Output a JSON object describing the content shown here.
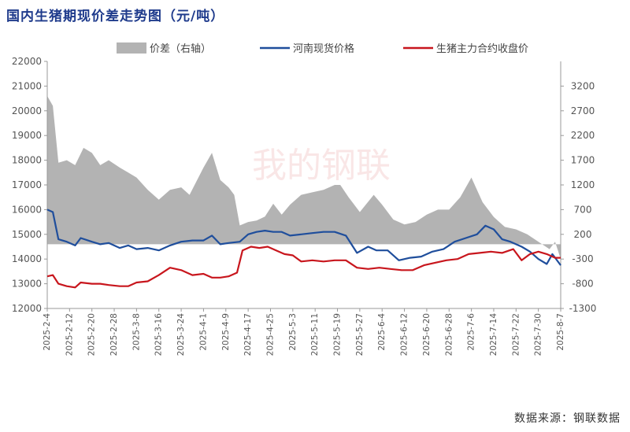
{
  "chart_data": {
    "type": "line",
    "title": "国内生猪期现价差走势图（元/吨）",
    "source": "数据来源：钢联数据",
    "watermark": "我的钢联",
    "legend_position": "top",
    "grid": false,
    "x_ticks": [
      "2025-2-4",
      "2025-2-12",
      "2025-2-20",
      "2025-2-28",
      "2025-3-8",
      "2025-3-16",
      "2025-3-24",
      "2025-4-1",
      "2025-4-9",
      "2025-4-17",
      "2025-4-25",
      "2025-5-3",
      "2025-5-11",
      "2025-5-19",
      "2025-5-27",
      "2025-6-4",
      "2025-6-12",
      "2025-6-20",
      "2025-6-28",
      "2025-7-6",
      "2025-7-14",
      "2025-7-22",
      "2025-7-30",
      "2025-8-7"
    ],
    "y_left": {
      "min": 12000,
      "max": 22000,
      "step": 1000,
      "ticks": [
        "12000",
        "13000",
        "14000",
        "15000",
        "16000",
        "17000",
        "18000",
        "19000",
        "20000",
        "21000",
        "22000"
      ]
    },
    "y_right": {
      "min": -1300,
      "max": 3700,
      "step": 500,
      "ticks": [
        "-1300",
        "-800",
        "-300",
        "200",
        "700",
        "1200",
        "1700",
        "2200",
        "2700",
        "3200"
      ]
    },
    "series": [
      {
        "name": "价差（右轴）",
        "axis": "right",
        "kind": "area",
        "color": "#b3b3b3",
        "points": [
          [
            "2025-2-4",
            3000
          ],
          [
            "2025-2-6",
            2800
          ],
          [
            "2025-2-8",
            1650
          ],
          [
            "2025-2-11",
            1700
          ],
          [
            "2025-2-14",
            1600
          ],
          [
            "2025-2-17",
            1950
          ],
          [
            "2025-2-20",
            1850
          ],
          [
            "2025-2-23",
            1600
          ],
          [
            "2025-2-26",
            1700
          ],
          [
            "2025-3-2",
            1550
          ],
          [
            "2025-3-5",
            1450
          ],
          [
            "2025-3-8",
            1350
          ],
          [
            "2025-3-12",
            1100
          ],
          [
            "2025-3-16",
            900
          ],
          [
            "2025-3-20",
            1100
          ],
          [
            "2025-3-24",
            1150
          ],
          [
            "2025-3-27",
            1000
          ],
          [
            "2025-4-1",
            1550
          ],
          [
            "2025-4-4",
            1850
          ],
          [
            "2025-4-7",
            1300
          ],
          [
            "2025-4-10",
            1150
          ],
          [
            "2025-4-12",
            1000
          ],
          [
            "2025-4-14",
            380
          ],
          [
            "2025-4-17",
            450
          ],
          [
            "2025-4-20",
            480
          ],
          [
            "2025-4-23",
            560
          ],
          [
            "2025-4-26",
            820
          ],
          [
            "2025-4-29",
            600
          ],
          [
            "2025-5-2",
            800
          ],
          [
            "2025-5-6",
            1000
          ],
          [
            "2025-5-10",
            1050
          ],
          [
            "2025-5-14",
            1100
          ],
          [
            "2025-5-18",
            1200
          ],
          [
            "2025-5-20",
            1200
          ],
          [
            "2025-5-23",
            950
          ],
          [
            "2025-5-27",
            650
          ],
          [
            "2025-6-1",
            1000
          ],
          [
            "2025-6-4",
            800
          ],
          [
            "2025-6-8",
            500
          ],
          [
            "2025-6-12",
            400
          ],
          [
            "2025-6-16",
            450
          ],
          [
            "2025-6-20",
            600
          ],
          [
            "2025-6-24",
            700
          ],
          [
            "2025-6-28",
            700
          ],
          [
            "2025-7-2",
            950
          ],
          [
            "2025-7-6",
            1350
          ],
          [
            "2025-7-10",
            850
          ],
          [
            "2025-7-14",
            550
          ],
          [
            "2025-7-18",
            350
          ],
          [
            "2025-7-22",
            300
          ],
          [
            "2025-7-26",
            200
          ],
          [
            "2025-7-30",
            50
          ],
          [
            "2025-8-3",
            -100
          ],
          [
            "2025-8-5",
            50
          ],
          [
            "2025-8-7",
            -300
          ]
        ]
      },
      {
        "name": "河南现货价格",
        "axis": "left",
        "kind": "line",
        "color": "#1f4e9c",
        "points": [
          [
            "2025-2-4",
            16000
          ],
          [
            "2025-2-6",
            15900
          ],
          [
            "2025-2-8",
            14800
          ],
          [
            "2025-2-11",
            14700
          ],
          [
            "2025-2-14",
            14550
          ],
          [
            "2025-2-16",
            14850
          ],
          [
            "2025-2-20",
            14700
          ],
          [
            "2025-2-23",
            14600
          ],
          [
            "2025-2-26",
            14650
          ],
          [
            "2025-3-2",
            14450
          ],
          [
            "2025-3-5",
            14550
          ],
          [
            "2025-3-8",
            14400
          ],
          [
            "2025-3-12",
            14450
          ],
          [
            "2025-3-16",
            14350
          ],
          [
            "2025-3-20",
            14550
          ],
          [
            "2025-3-24",
            14700
          ],
          [
            "2025-3-28",
            14750
          ],
          [
            "2025-4-1",
            14750
          ],
          [
            "2025-4-4",
            14950
          ],
          [
            "2025-4-7",
            14600
          ],
          [
            "2025-4-10",
            14650
          ],
          [
            "2025-4-14",
            14700
          ],
          [
            "2025-4-17",
            15000
          ],
          [
            "2025-4-20",
            15100
          ],
          [
            "2025-4-23",
            15150
          ],
          [
            "2025-4-26",
            15100
          ],
          [
            "2025-4-29",
            15100
          ],
          [
            "2025-5-2",
            14950
          ],
          [
            "2025-5-6",
            15000
          ],
          [
            "2025-5-10",
            15050
          ],
          [
            "2025-5-14",
            15100
          ],
          [
            "2025-5-18",
            15100
          ],
          [
            "2025-5-22",
            14950
          ],
          [
            "2025-5-26",
            14250
          ],
          [
            "2025-5-30",
            14500
          ],
          [
            "2025-6-2",
            14350
          ],
          [
            "2025-6-6",
            14350
          ],
          [
            "2025-6-10",
            13950
          ],
          [
            "2025-6-14",
            14050
          ],
          [
            "2025-6-18",
            14100
          ],
          [
            "2025-6-22",
            14300
          ],
          [
            "2025-6-26",
            14400
          ],
          [
            "2025-6-30",
            14700
          ],
          [
            "2025-7-4",
            14850
          ],
          [
            "2025-7-8",
            15000
          ],
          [
            "2025-7-11",
            15350
          ],
          [
            "2025-7-14",
            15200
          ],
          [
            "2025-7-17",
            14800
          ],
          [
            "2025-7-20",
            14700
          ],
          [
            "2025-7-24",
            14500
          ],
          [
            "2025-7-27",
            14300
          ],
          [
            "2025-7-30",
            14000
          ],
          [
            "2025-8-2",
            13800
          ],
          [
            "2025-8-4",
            14200
          ],
          [
            "2025-8-7",
            13750
          ]
        ]
      },
      {
        "name": "生猪主力合约收盘价",
        "axis": "left",
        "kind": "line",
        "color": "#c8161d",
        "points": [
          [
            "2025-2-4",
            13300
          ],
          [
            "2025-2-6",
            13350
          ],
          [
            "2025-2-8",
            13000
          ],
          [
            "2025-2-11",
            12900
          ],
          [
            "2025-2-14",
            12850
          ],
          [
            "2025-2-16",
            13050
          ],
          [
            "2025-2-20",
            13000
          ],
          [
            "2025-2-23",
            13000
          ],
          [
            "2025-2-26",
            12950
          ],
          [
            "2025-3-2",
            12900
          ],
          [
            "2025-3-5",
            12900
          ],
          [
            "2025-3-8",
            13050
          ],
          [
            "2025-3-12",
            13100
          ],
          [
            "2025-3-16",
            13350
          ],
          [
            "2025-3-20",
            13650
          ],
          [
            "2025-3-24",
            13550
          ],
          [
            "2025-3-28",
            13350
          ],
          [
            "2025-4-1",
            13400
          ],
          [
            "2025-4-4",
            13250
          ],
          [
            "2025-4-7",
            13250
          ],
          [
            "2025-4-10",
            13300
          ],
          [
            "2025-4-13",
            13450
          ],
          [
            "2025-4-15",
            14350
          ],
          [
            "2025-4-18",
            14500
          ],
          [
            "2025-4-21",
            14450
          ],
          [
            "2025-4-24",
            14500
          ],
          [
            "2025-4-27",
            14350
          ],
          [
            "2025-4-30",
            14200
          ],
          [
            "2025-5-3",
            14150
          ],
          [
            "2025-5-6",
            13900
          ],
          [
            "2025-5-10",
            13950
          ],
          [
            "2025-5-14",
            13900
          ],
          [
            "2025-5-18",
            13950
          ],
          [
            "2025-5-22",
            13950
          ],
          [
            "2025-5-26",
            13650
          ],
          [
            "2025-5-30",
            13600
          ],
          [
            "2025-6-3",
            13650
          ],
          [
            "2025-6-7",
            13600
          ],
          [
            "2025-6-11",
            13550
          ],
          [
            "2025-6-15",
            13550
          ],
          [
            "2025-6-19",
            13750
          ],
          [
            "2025-6-23",
            13850
          ],
          [
            "2025-6-27",
            13950
          ],
          [
            "2025-7-1",
            14000
          ],
          [
            "2025-7-5",
            14200
          ],
          [
            "2025-7-9",
            14250
          ],
          [
            "2025-7-13",
            14300
          ],
          [
            "2025-7-17",
            14250
          ],
          [
            "2025-7-21",
            14400
          ],
          [
            "2025-7-24",
            13950
          ],
          [
            "2025-7-27",
            14200
          ],
          [
            "2025-7-30",
            14300
          ],
          [
            "2025-8-2",
            14200
          ],
          [
            "2025-8-5",
            14050
          ],
          [
            "2025-8-7",
            14050
          ]
        ]
      }
    ]
  }
}
